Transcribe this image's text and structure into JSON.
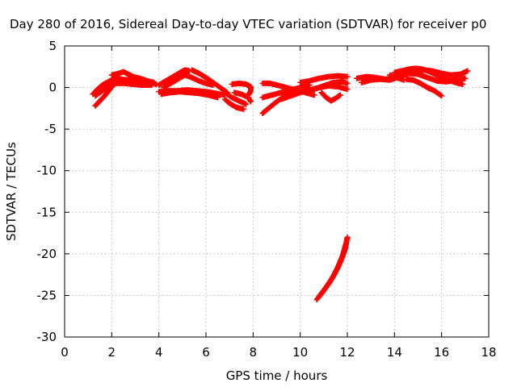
{
  "chart_data": {
    "type": "scatter",
    "title": "Day 280 of 2016, Sidereal Day-to-day VTEC variation (SDTVAR) for receiver p0",
    "xlabel": "GPS time / hours",
    "ylabel": "SDTVAR / TECUs",
    "xlim": [
      0,
      18
    ],
    "ylim": [
      -30,
      5
    ],
    "xticks": [
      0,
      2,
      4,
      6,
      8,
      10,
      12,
      14,
      16,
      18
    ],
    "yticks": [
      5,
      0,
      -5,
      -10,
      -15,
      -20,
      -25,
      -30
    ],
    "grid": true,
    "marker": "plus",
    "color": "#ff0000",
    "series": [
      {
        "segments": [
          [
            [
              1.3,
              -2.2
            ],
            [
              1.5,
              -1.6
            ],
            [
              1.7,
              -1.0
            ],
            [
              1.9,
              -0.3
            ],
            [
              2.1,
              0.4
            ]
          ],
          [
            [
              1.2,
              -0.8
            ],
            [
              1.4,
              -0.2
            ],
            [
              1.6,
              0.3
            ],
            [
              1.8,
              0.6
            ],
            [
              2.0,
              0.9
            ],
            [
              2.2,
              1.0
            ]
          ],
          [
            [
              1.3,
              -1.0
            ],
            [
              1.6,
              -0.4
            ],
            [
              1.9,
              0.2
            ],
            [
              2.1,
              0.8
            ],
            [
              2.3,
              1.3
            ]
          ],
          [
            [
              2.0,
              1.5
            ],
            [
              2.3,
              1.7
            ],
            [
              2.5,
              1.9
            ],
            [
              2.7,
              1.6
            ],
            [
              2.9,
              1.3
            ],
            [
              3.2,
              1.1
            ],
            [
              3.5,
              0.8
            ],
            [
              3.8,
              0.6
            ]
          ],
          [
            [
              2.3,
              1.0
            ],
            [
              2.7,
              0.9
            ],
            [
              3.1,
              0.8
            ],
            [
              3.5,
              0.6
            ],
            [
              3.9,
              0.4
            ]
          ],
          [
            [
              2.1,
              0.5
            ],
            [
              2.5,
              0.5
            ],
            [
              2.9,
              0.4
            ],
            [
              3.3,
              0.3
            ],
            [
              3.7,
              0.3
            ]
          ],
          [
            [
              4.0,
              0.3
            ],
            [
              4.3,
              0.8
            ],
            [
              4.6,
              1.3
            ],
            [
              4.9,
              1.8
            ],
            [
              5.1,
              2.1
            ],
            [
              5.3,
              2.0
            ]
          ],
          [
            [
              4.2,
              0.0
            ],
            [
              4.5,
              0.5
            ],
            [
              4.8,
              1.0
            ],
            [
              5.1,
              1.5
            ],
            [
              5.4,
              1.2
            ],
            [
              5.7,
              0.8
            ],
            [
              6.0,
              0.5
            ],
            [
              6.3,
              0.3
            ]
          ],
          [
            [
              4.0,
              -0.5
            ],
            [
              4.4,
              -0.4
            ],
            [
              4.8,
              -0.4
            ],
            [
              5.2,
              -0.3
            ],
            [
              5.6,
              -0.4
            ],
            [
              6.0,
              -0.5
            ],
            [
              6.4,
              -0.7
            ],
            [
              6.8,
              -0.9
            ]
          ],
          [
            [
              4.1,
              -0.8
            ],
            [
              4.5,
              -0.6
            ],
            [
              4.9,
              -0.5
            ],
            [
              5.3,
              -0.6
            ],
            [
              5.7,
              -0.7
            ],
            [
              6.1,
              -0.9
            ],
            [
              6.5,
              -1.2
            ]
          ],
          [
            [
              5.4,
              2.1
            ],
            [
              5.7,
              1.7
            ],
            [
              6.0,
              1.2
            ],
            [
              6.3,
              0.6
            ],
            [
              6.6,
              0.0
            ],
            [
              6.9,
              -0.6
            ]
          ],
          [
            [
              6.8,
              -1.4
            ],
            [
              7.0,
              -1.9
            ],
            [
              7.3,
              -2.4
            ],
            [
              7.6,
              -2.6
            ]
          ],
          [
            [
              6.9,
              -0.8
            ],
            [
              7.1,
              -1.2
            ],
            [
              7.4,
              -1.6
            ],
            [
              7.7,
              -2.0
            ]
          ],
          [
            [
              7.1,
              0.4
            ],
            [
              7.4,
              0.5
            ],
            [
              7.7,
              0.4
            ],
            [
              7.9,
              0.1
            ],
            [
              7.9,
              -0.4
            ],
            [
              7.8,
              -0.9
            ]
          ],
          [
            [
              7.2,
              -0.6
            ],
            [
              7.5,
              -0.8
            ],
            [
              7.8,
              -1.2
            ],
            [
              7.9,
              -1.7
            ]
          ],
          [
            [
              8.4,
              -3.1
            ],
            [
              8.7,
              -2.4
            ],
            [
              9.0,
              -1.7
            ],
            [
              9.3,
              -1.1
            ],
            [
              9.6,
              -0.8
            ],
            [
              9.9,
              -0.5
            ],
            [
              10.2,
              -0.2
            ]
          ],
          [
            [
              8.4,
              -1.2
            ],
            [
              8.8,
              -0.9
            ],
            [
              9.2,
              -0.6
            ],
            [
              9.6,
              -0.3
            ],
            [
              10.0,
              0.0
            ],
            [
              10.4,
              0.3
            ]
          ],
          [
            [
              8.4,
              0.5
            ],
            [
              8.7,
              0.5
            ],
            [
              9.0,
              0.3
            ],
            [
              9.4,
              0.0
            ],
            [
              9.8,
              -0.3
            ],
            [
              10.2,
              -0.6
            ],
            [
              10.6,
              -0.9
            ]
          ],
          [
            [
              10.0,
              0.6
            ],
            [
              10.4,
              0.8
            ],
            [
              10.8,
              1.1
            ],
            [
              11.2,
              1.3
            ],
            [
              11.6,
              1.4
            ],
            [
              12.0,
              1.3
            ]
          ],
          [
            [
              10.2,
              -0.5
            ],
            [
              10.6,
              -0.2
            ],
            [
              11.0,
              0.2
            ],
            [
              11.4,
              0.6
            ],
            [
              11.8,
              0.7
            ],
            [
              12.0,
              0.5
            ]
          ],
          [
            [
              9.2,
              -1.4
            ],
            [
              9.6,
              -1.0
            ],
            [
              10.0,
              -0.6
            ],
            [
              10.4,
              -0.3
            ],
            [
              10.8,
              0.0
            ],
            [
              11.2,
              0.2
            ],
            [
              11.6,
              0.1
            ],
            [
              12.0,
              -0.2
            ]
          ],
          [
            [
              10.9,
              -0.6
            ],
            [
              11.1,
              -1.2
            ],
            [
              11.3,
              -1.6
            ],
            [
              11.5,
              -1.3
            ],
            [
              11.7,
              -0.9
            ]
          ],
          [
            [
              12.4,
              1.1
            ],
            [
              12.8,
              1.3
            ],
            [
              13.2,
              1.2
            ],
            [
              13.6,
              1.0
            ],
            [
              14.0,
              1.1
            ],
            [
              14.4,
              1.6
            ],
            [
              14.8,
              2.0
            ],
            [
              15.2,
              2.1
            ],
            [
              15.6,
              2.0
            ],
            [
              16.0,
              1.7
            ],
            [
              16.4,
              1.5
            ],
            [
              16.8,
              1.6
            ],
            [
              17.1,
              2.0
            ]
          ],
          [
            [
              12.6,
              0.6
            ],
            [
              13.0,
              0.9
            ],
            [
              13.4,
              1.0
            ],
            [
              13.8,
              0.9
            ],
            [
              14.2,
              1.3
            ],
            [
              14.6,
              1.7
            ],
            [
              15.0,
              1.6
            ],
            [
              15.4,
              1.2
            ],
            [
              15.8,
              0.8
            ],
            [
              16.2,
              0.7
            ],
            [
              16.6,
              0.9
            ],
            [
              17.0,
              1.1
            ]
          ],
          [
            [
              14.0,
              1.8
            ],
            [
              14.3,
              2.0
            ],
            [
              14.6,
              2.2
            ],
            [
              14.9,
              2.3
            ],
            [
              15.2,
              2.2
            ],
            [
              15.5,
              1.9
            ],
            [
              15.8,
              1.5
            ],
            [
              16.1,
              1.1
            ],
            [
              16.4,
              0.8
            ],
            [
              16.7,
              0.5
            ],
            [
              16.9,
              0.4
            ]
          ],
          [
            [
              14.5,
              1.0
            ],
            [
              14.8,
              0.9
            ],
            [
              15.1,
              0.5
            ],
            [
              15.4,
              0.0
            ],
            [
              15.7,
              -0.4
            ],
            [
              16.0,
              -1.0
            ]
          ],
          [
            [
              13.8,
              1.5
            ],
            [
              14.1,
              1.2
            ],
            [
              14.4,
              0.9
            ]
          ],
          [
            [
              10.7,
              -25.5
            ],
            [
              10.9,
              -24.8
            ],
            [
              11.1,
              -24.0
            ],
            [
              11.3,
              -23.2
            ],
            [
              11.5,
              -22.2
            ],
            [
              11.7,
              -21.0
            ],
            [
              11.9,
              -19.5
            ],
            [
              12.0,
              -18.0
            ]
          ],
          [
            [
              10.8,
              -25.1
            ],
            [
              11.0,
              -24.4
            ],
            [
              11.2,
              -23.6
            ],
            [
              11.4,
              -22.7
            ],
            [
              11.6,
              -21.6
            ],
            [
              11.8,
              -20.2
            ],
            [
              11.95,
              -18.7
            ]
          ]
        ]
      }
    ]
  }
}
